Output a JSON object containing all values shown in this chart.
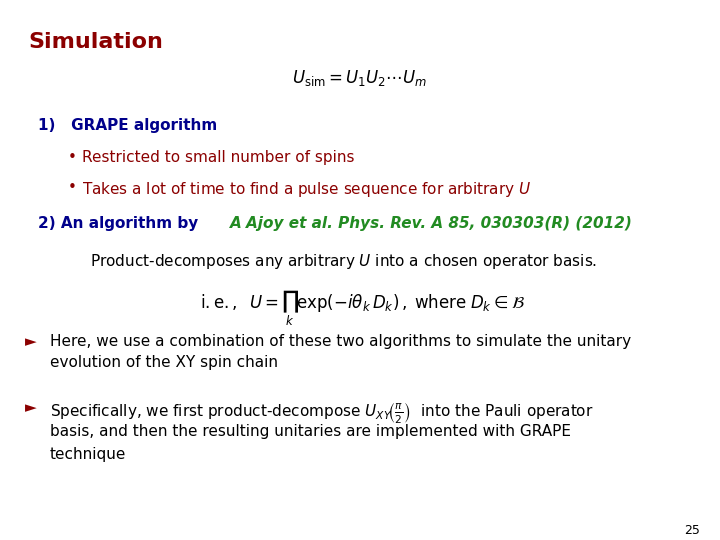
{
  "title": "Simulation",
  "title_color": "#8B0000",
  "bg_color": "#FFFFFF",
  "page_number": "25",
  "section1_color": "#00008B",
  "bullet_color": "#8B0000",
  "section2_color": "#00008B",
  "section2_ref": "A Ajoy et al. Phys. Rev. A 85, 030303(R) (2012)",
  "section2_ref_color": "#228B22",
  "para_color": "#000000",
  "para_arrow_color": "#8B0000",
  "desc_color": "#000000",
  "eq_color": "#000000"
}
